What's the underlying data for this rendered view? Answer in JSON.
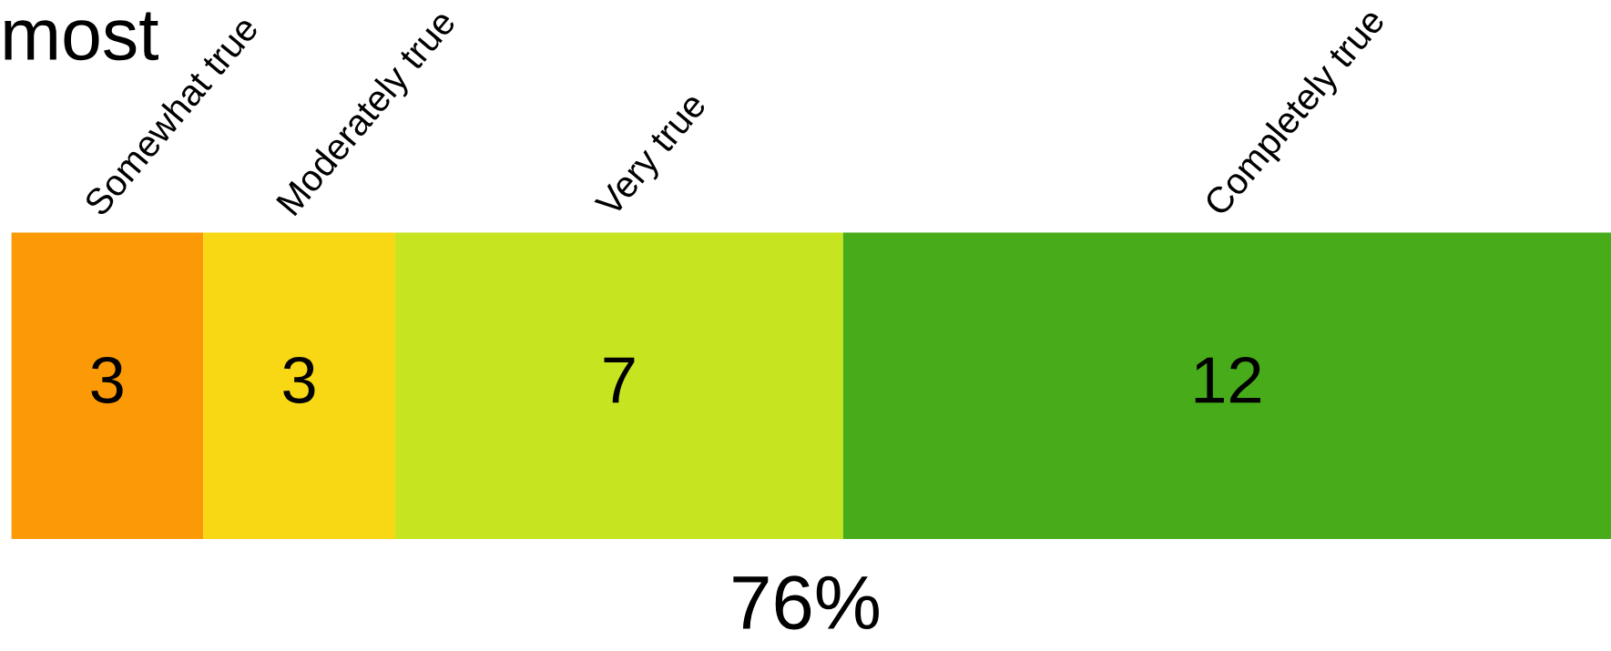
{
  "chart_data": {
    "type": "bar",
    "orientation": "horizontal",
    "stacked": true,
    "title": "most",
    "categories": [
      null
    ],
    "series": [
      {
        "name": "Somewhat true",
        "color": "#fb9a06",
        "values": [
          3
        ]
      },
      {
        "name": "Moderately true",
        "color": "#f8d714",
        "values": [
          3
        ]
      },
      {
        "name": "Very true",
        "color": "#c7e420",
        "values": [
          7
        ]
      },
      {
        "name": "Completely true",
        "color": "#47ab1a",
        "values": [
          12
        ]
      }
    ],
    "data_labels": true,
    "annotations": [
      "76%"
    ],
    "legend": false
  }
}
